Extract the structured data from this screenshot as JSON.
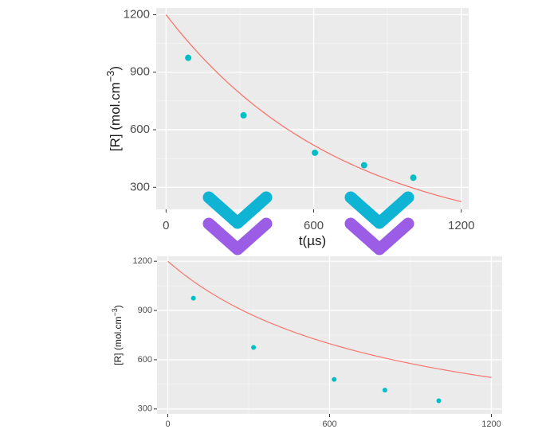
{
  "chart_data": [
    {
      "type": "scatter",
      "xlabel": "t(µs)",
      "ylabel": "[R] (mol.cm",
      "ylabel_sup": "−3",
      "ylabel_close": ")",
      "xlim": [
        -40,
        1230
      ],
      "ylim": [
        185,
        1235
      ],
      "xticks": [
        0,
        600,
        1200
      ],
      "yticks": [
        300,
        600,
        900,
        1200
      ],
      "grid": true,
      "series": [
        {
          "kind": "points",
          "color": "#00bfc4",
          "x": [
            90,
            315,
            605,
            805,
            1005
          ],
          "y": [
            975,
            675,
            480,
            415,
            350
          ]
        },
        {
          "kind": "fitted-curve",
          "color": "#f8766d",
          "y0": 1200,
          "k": 0.001395,
          "x_from": 0,
          "x_to": 1200
        }
      ]
    },
    {
      "type": "scatter",
      "xlabel": "",
      "ylabel": "[R] (mol.cm",
      "ylabel_sup": "−3",
      "ylabel_close": ")",
      "xlim": [
        -40,
        1240
      ],
      "ylim": [
        270,
        1230
      ],
      "xticks": [
        0,
        600,
        1200
      ],
      "yticks": [
        300,
        600,
        900,
        1200
      ],
      "grid": true,
      "series": [
        {
          "kind": "points",
          "color": "#00bfc4",
          "x": [
            95,
            318,
            617,
            805,
            1005
          ],
          "y": [
            975,
            675,
            480,
            415,
            350
          ]
        },
        {
          "kind": "fitted-curve",
          "color": "#f8766d",
          "y0": 1200,
          "a": 0.0012,
          "x_from": 0,
          "x_to": 1200
        }
      ]
    }
  ],
  "decor": {
    "chevron_colors": [
      "#0fb4d4",
      "#9b5de5"
    ]
  }
}
